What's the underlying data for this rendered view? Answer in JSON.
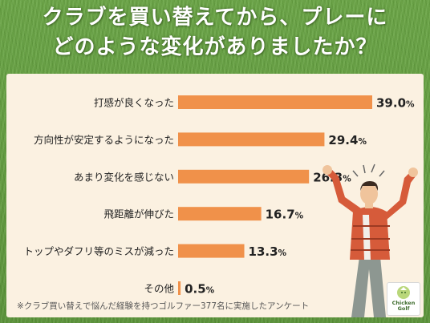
{
  "title": {
    "line1": "クラブを買い替えてから、プレーに",
    "line2": "どのような変化がありましたか？"
  },
  "chart_data": {
    "type": "bar",
    "orientation": "horizontal",
    "categories": [
      "打感が良くなった",
      "方向性が安定するようになった",
      "あまり変化を感じない",
      "飛距離が伸びた",
      "トップやダフリ等のミスが減った",
      "その他"
    ],
    "values": [
      39.0,
      29.4,
      26.3,
      16.7,
      13.3,
      0.5
    ],
    "value_labels": [
      "39.0",
      "29.4",
      "26.3",
      "16.7",
      "13.3",
      "0.5"
    ],
    "unit": "%",
    "xlim": [
      0,
      39.0
    ],
    "grid": false,
    "bar_color": "#f0914a"
  },
  "footnote": "※クラブ買い替えで悩んだ経験を持つゴルファー377名に実施したアンケート",
  "logo": {
    "line1": "Chicken",
    "line2": "Golf"
  },
  "colors": {
    "accent": "#f0914a",
    "panel": "#fbf1e1",
    "grass": "#5f9a3c"
  }
}
